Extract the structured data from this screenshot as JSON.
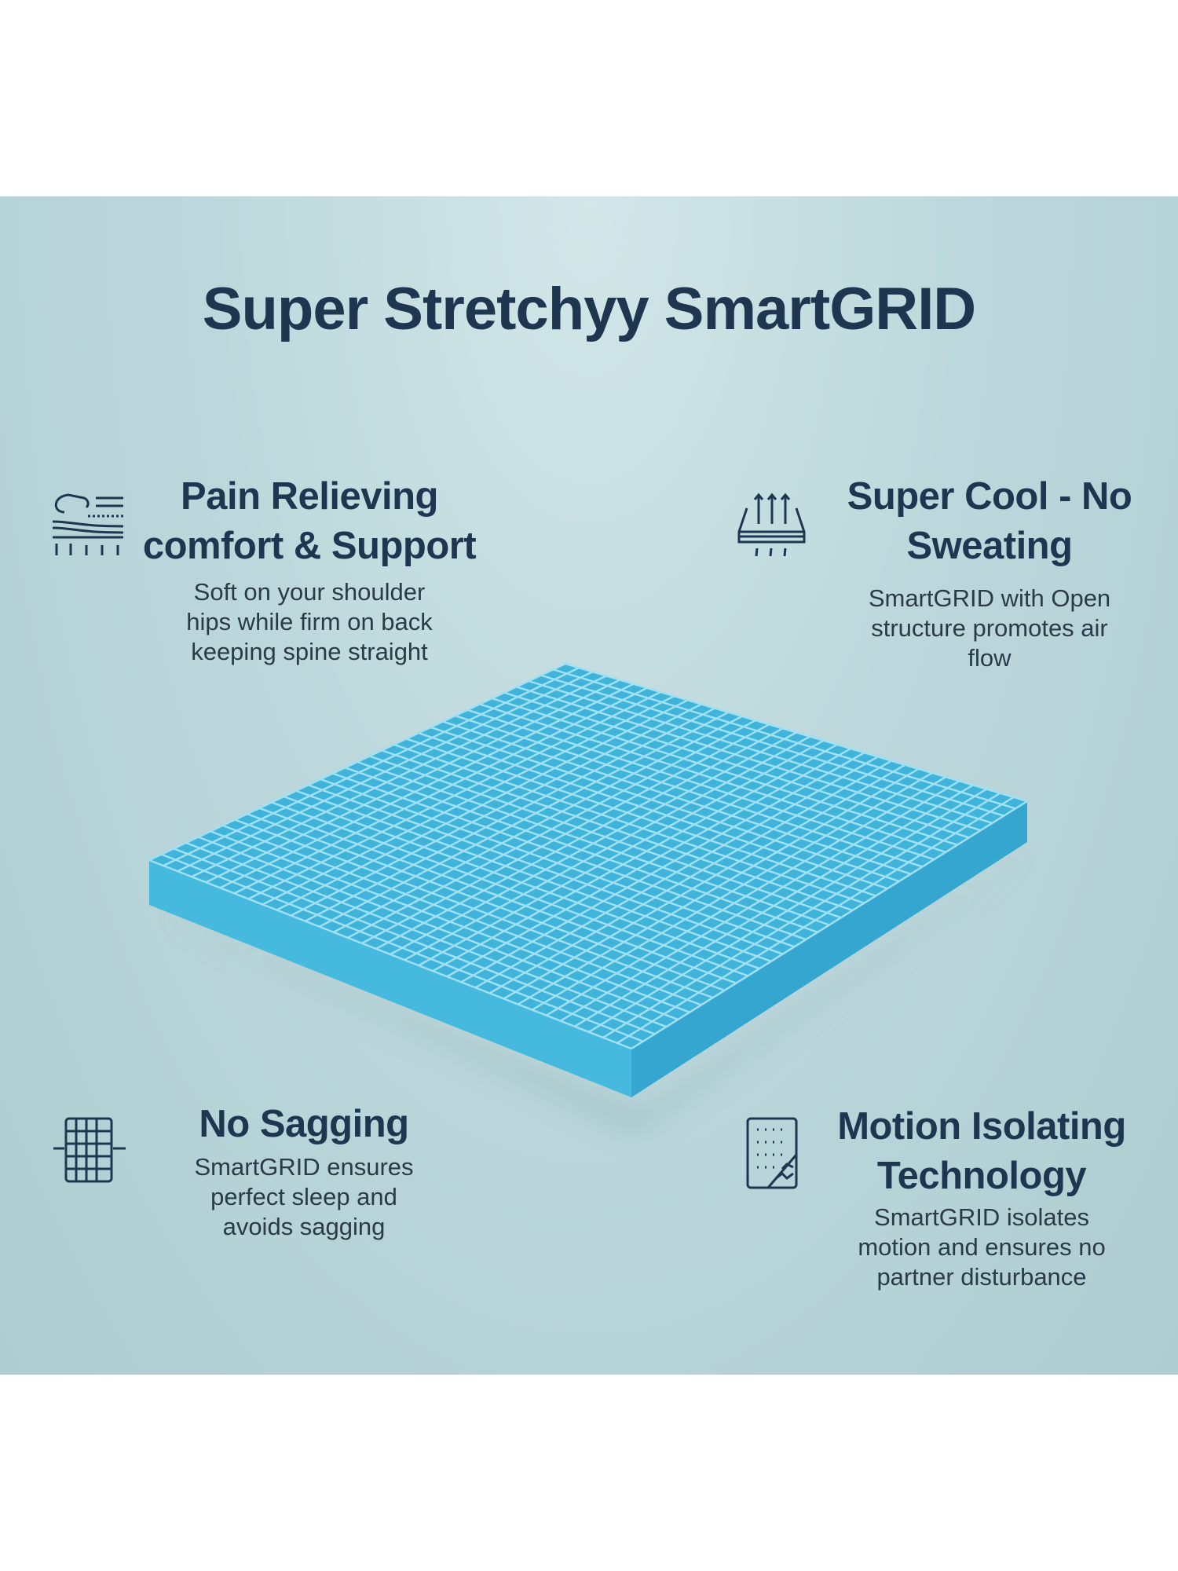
{
  "title": "Super Stretchyy SmartGRID",
  "colors": {
    "heading": "#1e3650",
    "background": "#b9d5d9",
    "grid": "#3fb6dc"
  },
  "features": [
    {
      "icon": "pillow-support-arrows-icon",
      "heading": [
        "Pain Relieving",
        "comfort & Support"
      ],
      "body": [
        "Soft on your shoulder",
        "hips while firm on back",
        "keeping spine straight"
      ]
    },
    {
      "icon": "mattress-airflow-icon",
      "heading": [
        "Super Cool - No",
        "Sweating"
      ],
      "body": [
        "SmartGRID with Open",
        "structure promotes air",
        "flow"
      ]
    },
    {
      "icon": "grid-mattress-icon",
      "heading": [
        "No Sagging"
      ],
      "body": [
        "SmartGRID ensures",
        "perfect sleep and",
        "avoids sagging"
      ]
    },
    {
      "icon": "motion-isolation-icon",
      "heading": [
        "Motion Isolating",
        "Technology"
      ],
      "body": [
        "SmartGRID isolates",
        "motion and ensures no",
        "partner disturbance"
      ]
    }
  ]
}
